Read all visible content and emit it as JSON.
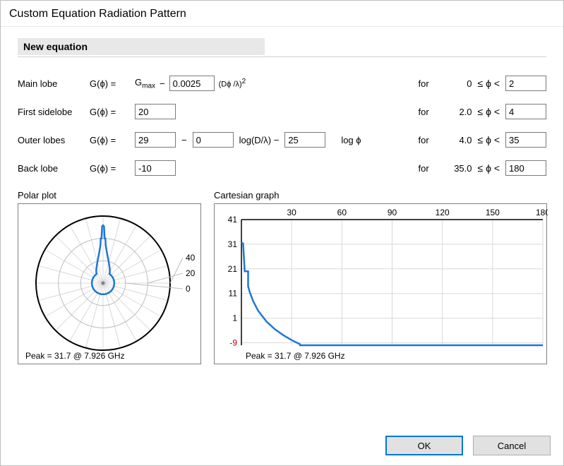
{
  "window": {
    "title": "Custom Equation Radiation Pattern"
  },
  "section": {
    "title": "New equation"
  },
  "common": {
    "g_of_phi": "G(ϕ) =",
    "for": "for",
    "le_phi_lt": "≤ ϕ <"
  },
  "rows": {
    "main": {
      "label": "Main lobe",
      "gmax_html": "G<sub>max</sub>",
      "minus": "−",
      "coef": "0.0025",
      "suffix_html": "(Dϕ /λ)<sup>2</sup>",
      "lower": "0",
      "upper": "2"
    },
    "first": {
      "label": "First sidelobe",
      "value": "20",
      "lower": "2.0",
      "upper": "4"
    },
    "outer": {
      "label": "Outer lobes",
      "v1": "29",
      "minus1": "−",
      "v2": "0",
      "mid_html": "log(D/λ) −",
      "v3": "25",
      "tail_html": "log  ϕ",
      "lower": "4.0",
      "upper": "35"
    },
    "back": {
      "label": "Back lobe",
      "value": "-10",
      "lower": "35.0",
      "upper": "180"
    }
  },
  "polar": {
    "title": "Polar plot",
    "peak": "Peak = 31.7 @ 7.926 GHz",
    "rings": [
      0,
      20,
      40
    ],
    "ring_color": "#bdbdbd",
    "outer_ring_color": "#000000",
    "spoke_color": "#d9d9d9",
    "curve_color": "#1f77d4",
    "origin_color": "#808080",
    "label_color": "#000000",
    "background": "#ffffff",
    "gmax": 31.7,
    "first_sidelobe_db": 20,
    "back_db": -10,
    "outer": {
      "a": 29,
      "b": 25
    },
    "bounds": {
      "main_end": 2,
      "first_end": 4,
      "outer_end": 35
    }
  },
  "cartesian": {
    "title": "Cartesian graph",
    "peak": "Peak = 31.7 @ 7.926 GHz",
    "x_ticks": [
      30,
      60,
      90,
      120,
      150,
      180
    ],
    "y_ticks": [
      -9,
      1,
      11,
      21,
      31,
      41
    ],
    "y_min_label": "-9",
    "grid_color": "#d9d9d9",
    "axis_color": "#000000",
    "curve_color": "#1f77d4",
    "neg_label_color": "#c00000",
    "label_color": "#000000",
    "background": "#ffffff",
    "xlim": [
      0,
      180
    ],
    "ylim": [
      -10,
      41
    ],
    "points": [
      [
        0,
        31.7
      ],
      [
        1,
        31.3
      ],
      [
        2,
        20
      ],
      [
        3,
        20
      ],
      [
        4,
        20
      ],
      [
        4.01,
        13.9
      ],
      [
        5,
        11.5
      ],
      [
        7,
        7.9
      ],
      [
        10,
        4.0
      ],
      [
        15,
        -0.4
      ],
      [
        20,
        -3.5
      ],
      [
        25,
        -5.9
      ],
      [
        30,
        -7.9
      ],
      [
        35,
        -9.6
      ],
      [
        35.01,
        -10
      ],
      [
        40,
        -10
      ],
      [
        60,
        -10
      ],
      [
        90,
        -10
      ],
      [
        120,
        -10
      ],
      [
        150,
        -10
      ],
      [
        180,
        -10
      ]
    ]
  },
  "buttons": {
    "ok": "OK",
    "cancel": "Cancel"
  }
}
